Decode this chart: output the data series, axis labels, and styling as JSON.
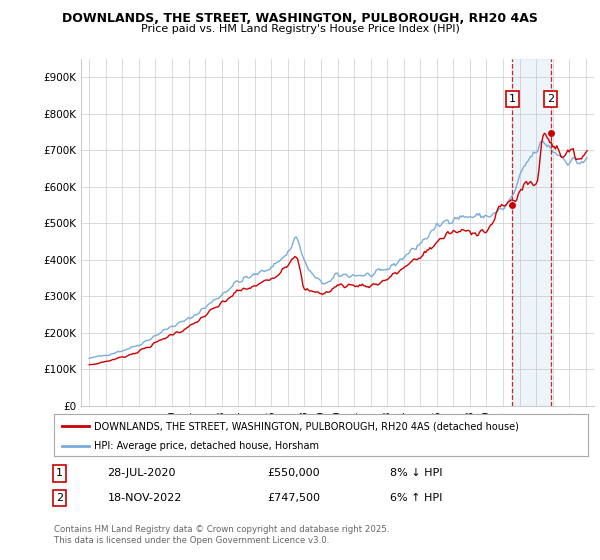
{
  "title": "DOWNLANDS, THE STREET, WASHINGTON, PULBOROUGH, RH20 4AS",
  "subtitle": "Price paid vs. HM Land Registry's House Price Index (HPI)",
  "legend_label_red": "DOWNLANDS, THE STREET, WASHINGTON, PULBOROUGH, RH20 4AS (detached house)",
  "legend_label_blue": "HPI: Average price, detached house, Horsham",
  "footer": "Contains HM Land Registry data © Crown copyright and database right 2025.\nThis data is licensed under the Open Government Licence v3.0.",
  "purchase1_date": "28-JUL-2020",
  "purchase1_price": "£550,000",
  "purchase1_hpi": "8% ↓ HPI",
  "purchase1_year": 2020.57,
  "purchase1_value": 550000,
  "purchase2_date": "18-NOV-2022",
  "purchase2_price": "£747,500",
  "purchase2_hpi": "6% ↑ HPI",
  "purchase2_year": 2022.88,
  "purchase2_value": 747500,
  "ylim_min": 0,
  "ylim_max": 950000,
  "xlim_min": 1994.5,
  "xlim_max": 2025.5,
  "red_color": "#cc0000",
  "blue_color": "#7aaddb",
  "bg_color": "#ffffff",
  "grid_color": "#cccccc",
  "anno_color": "#cc0000"
}
